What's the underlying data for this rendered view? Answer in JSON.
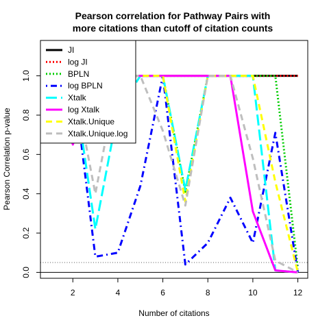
{
  "chart_data": {
    "type": "line",
    "title": [
      "Pearson correlation for Pathway Pairs with",
      "more citations than cutoff of citation counts"
    ],
    "xlabel": "Number of citations",
    "ylabel": "Pearson Correlation p-value",
    "xlim": [
      0.56,
      12.44
    ],
    "ylim": [
      -0.03,
      1.18
    ],
    "xticks": [
      2,
      4,
      6,
      8,
      10,
      12
    ],
    "yticks": [
      0.0,
      0.2,
      0.4,
      0.6,
      0.8,
      1.0
    ],
    "xtick_labels": [
      "2",
      "4",
      "6",
      "8",
      "10",
      "12"
    ],
    "ytick_labels": [
      "0.0",
      "0.2",
      "0.4",
      "0.6",
      "0.8",
      "1.0"
    ],
    "x": [
      1,
      2,
      3,
      4,
      5,
      6,
      7,
      8,
      9,
      10,
      11,
      12
    ],
    "legend_position": "top-left",
    "reference_lines": [
      {
        "y": 0.0,
        "style": "solid",
        "color": "#000000"
      },
      {
        "y": 0.05,
        "style": "dotted",
        "color": "#555555"
      }
    ],
    "series": [
      {
        "name": "JI",
        "color": "#000000",
        "dash": "solid",
        "values": [
          1,
          1,
          1,
          1,
          1,
          1,
          1,
          1,
          1,
          1,
          1,
          1
        ]
      },
      {
        "name": "log JI",
        "color": "#ff0000",
        "dash": "dotted",
        "values": [
          1,
          1,
          1,
          1,
          1,
          1,
          1,
          1,
          1,
          1,
          1,
          1
        ]
      },
      {
        "name": "BPLN",
        "color": "#00cd00",
        "dash": "dotted",
        "values": [
          1,
          1,
          1,
          1,
          1,
          1,
          0.41,
          1,
          1,
          1,
          1,
          0.02
        ]
      },
      {
        "name": "log BPLN",
        "color": "#0000ff",
        "dash": "dotdash",
        "values": [
          1,
          1,
          0.08,
          0.1,
          0.44,
          1,
          0.04,
          0.15,
          0.38,
          0.15,
          0.71,
          0.0
        ]
      },
      {
        "name": "Xtalk",
        "color": "#00ffff",
        "dash": "longdash",
        "values": [
          1,
          1,
          0.22,
          0.82,
          1,
          1,
          0.42,
          1,
          1,
          1,
          0.01,
          0.0
        ]
      },
      {
        "name": "log Xtalk",
        "color": "#ff00ff",
        "dash": "solid",
        "values": [
          1,
          0.65,
          1,
          1,
          1,
          1,
          1,
          1,
          1,
          0.31,
          0.01,
          0.0
        ]
      },
      {
        "name": "Xtalk.Unique",
        "color": "#ffff00",
        "dash": "dashed",
        "values": [
          1,
          1,
          1,
          1,
          1,
          1,
          0.36,
          1,
          1,
          1,
          0.46,
          0.0
        ]
      },
      {
        "name": "Xtalk.Unique.log",
        "color": "#bebebe",
        "dash": "dashed",
        "values": [
          1,
          1,
          0.4,
          1,
          1,
          0.72,
          0.34,
          1,
          1,
          0.58,
          0.06,
          0.0
        ]
      }
    ]
  }
}
